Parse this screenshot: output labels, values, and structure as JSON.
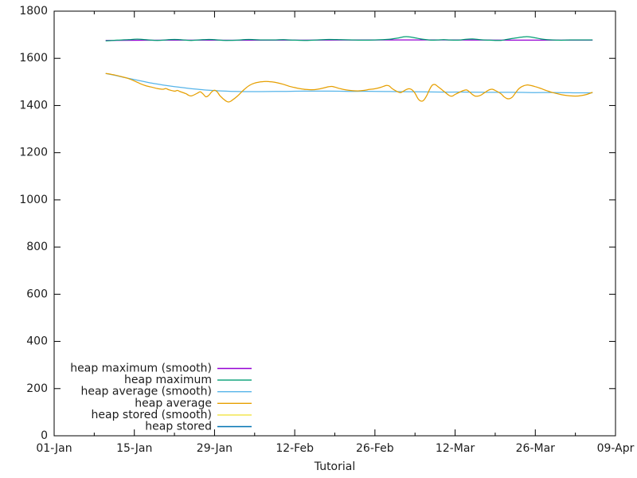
{
  "page": {
    "background": "#ffffff",
    "axis_color": "#000000",
    "text_color": "#1c1c1c"
  },
  "chart_data": {
    "type": "line",
    "title": "",
    "xlabel": "Tutorial",
    "ylabel": "",
    "grid": false,
    "legend_position": "bottom-left-inside",
    "x_axis": {
      "unit": "date",
      "range_days": [
        0,
        98
      ],
      "major_ticks": [
        {
          "day": 0,
          "label": "01-Jan"
        },
        {
          "day": 14,
          "label": "15-Jan"
        },
        {
          "day": 28,
          "label": "29-Jan"
        },
        {
          "day": 42,
          "label": "12-Feb"
        },
        {
          "day": 56,
          "label": "26-Feb"
        },
        {
          "day": 70,
          "label": "12-Mar"
        },
        {
          "day": 84,
          "label": "26-Mar"
        },
        {
          "day": 98,
          "label": "09-Apr"
        }
      ],
      "minor_tick_days": [
        7,
        21,
        35,
        49,
        63,
        77,
        91
      ]
    },
    "y_axis": {
      "range": [
        0,
        1800
      ],
      "tick_values": [
        0,
        200,
        400,
        600,
        800,
        1000,
        1200,
        1400,
        1600,
        1800
      ]
    },
    "series": [
      {
        "key": "heap_maximum_smooth",
        "label": "heap maximum (smooth)",
        "color": "#9400d3",
        "visible": true,
        "points": [
          [
            9,
            1676
          ],
          [
            20,
            1677
          ],
          [
            40,
            1677
          ],
          [
            60,
            1678
          ],
          [
            80,
            1677
          ],
          [
            94,
            1677
          ]
        ]
      },
      {
        "key": "heap_maximum",
        "label": "heap maximum",
        "color": "#009e73",
        "visible": true,
        "points": [
          [
            9,
            1674
          ],
          [
            11,
            1677
          ],
          [
            13,
            1679
          ],
          [
            14,
            1681
          ],
          [
            15,
            1681
          ],
          [
            16,
            1679
          ],
          [
            17,
            1677
          ],
          [
            18,
            1676
          ],
          [
            19,
            1677
          ],
          [
            20,
            1679
          ],
          [
            21,
            1680
          ],
          [
            22,
            1679
          ],
          [
            23,
            1677
          ],
          [
            24,
            1676
          ],
          [
            26,
            1679
          ],
          [
            27,
            1680
          ],
          [
            28,
            1679
          ],
          [
            29,
            1677
          ],
          [
            30,
            1676
          ],
          [
            32,
            1677
          ],
          [
            33,
            1679
          ],
          [
            34,
            1680
          ],
          [
            35,
            1679
          ],
          [
            36,
            1678
          ],
          [
            38,
            1678
          ],
          [
            40,
            1679
          ],
          [
            42,
            1677
          ],
          [
            44,
            1676
          ],
          [
            46,
            1678
          ],
          [
            48,
            1680
          ],
          [
            50,
            1679
          ],
          [
            52,
            1678
          ],
          [
            54,
            1677
          ],
          [
            56,
            1678
          ],
          [
            58,
            1680
          ],
          [
            59,
            1682
          ],
          [
            60,
            1686
          ],
          [
            61,
            1691
          ],
          [
            61.5,
            1692
          ],
          [
            62,
            1691
          ],
          [
            63,
            1687
          ],
          [
            64,
            1682
          ],
          [
            65,
            1679
          ],
          [
            66,
            1677
          ],
          [
            67,
            1678
          ],
          [
            68,
            1679
          ],
          [
            69,
            1678
          ],
          [
            70,
            1677
          ],
          [
            71,
            1678
          ],
          [
            72,
            1681
          ],
          [
            73,
            1682
          ],
          [
            74,
            1680
          ],
          [
            75,
            1678
          ],
          [
            76,
            1677
          ],
          [
            77,
            1676
          ],
          [
            78,
            1676
          ],
          [
            79,
            1680
          ],
          [
            80,
            1684
          ],
          [
            81,
            1688
          ],
          [
            82,
            1691
          ],
          [
            82.5,
            1692
          ],
          [
            83,
            1691
          ],
          [
            84,
            1687
          ],
          [
            85,
            1682
          ],
          [
            86,
            1679
          ],
          [
            87,
            1678
          ],
          [
            88,
            1677
          ],
          [
            89,
            1677
          ],
          [
            90,
            1678
          ],
          [
            92,
            1678
          ],
          [
            94,
            1678
          ]
        ]
      },
      {
        "key": "heap_average_smooth",
        "label": "heap average (smooth)",
        "color": "#56b4e9",
        "visible": true,
        "points": [
          [
            9,
            1536
          ],
          [
            11,
            1526
          ],
          [
            13,
            1515
          ],
          [
            15,
            1505
          ],
          [
            17,
            1495
          ],
          [
            19,
            1487
          ],
          [
            21,
            1480
          ],
          [
            23,
            1474
          ],
          [
            25,
            1469
          ],
          [
            27,
            1465
          ],
          [
            29,
            1462
          ],
          [
            31,
            1460
          ],
          [
            33,
            1459
          ],
          [
            36,
            1459
          ],
          [
            40,
            1460
          ],
          [
            44,
            1461
          ],
          [
            48,
            1461
          ],
          [
            52,
            1460
          ],
          [
            56,
            1460
          ],
          [
            60,
            1459
          ],
          [
            64,
            1458
          ],
          [
            68,
            1457
          ],
          [
            72,
            1457
          ],
          [
            76,
            1456
          ],
          [
            80,
            1456
          ],
          [
            84,
            1455
          ],
          [
            88,
            1455
          ],
          [
            91,
            1454
          ],
          [
            94,
            1454
          ]
        ]
      },
      {
        "key": "heap_average",
        "label": "heap average",
        "color": "#e69f00",
        "visible": true,
        "points": [
          [
            9,
            1536
          ],
          [
            10,
            1532
          ],
          [
            11,
            1527
          ],
          [
            12,
            1521
          ],
          [
            13,
            1514
          ],
          [
            14,
            1504
          ],
          [
            15,
            1493
          ],
          [
            16,
            1484
          ],
          [
            17,
            1478
          ],
          [
            18,
            1472
          ],
          [
            19,
            1469
          ],
          [
            19.5,
            1472
          ],
          [
            20,
            1467
          ],
          [
            21,
            1461
          ],
          [
            21.5,
            1464
          ],
          [
            22,
            1459
          ],
          [
            23,
            1450
          ],
          [
            23.5,
            1443
          ],
          [
            24,
            1441
          ],
          [
            25,
            1452
          ],
          [
            25.5,
            1458
          ],
          [
            26,
            1449
          ],
          [
            26.5,
            1437
          ],
          [
            27,
            1443
          ],
          [
            27.5,
            1458
          ],
          [
            28,
            1465
          ],
          [
            28.5,
            1457
          ],
          [
            29,
            1440
          ],
          [
            30,
            1419
          ],
          [
            30.5,
            1415
          ],
          [
            31,
            1421
          ],
          [
            32,
            1440
          ],
          [
            33,
            1464
          ],
          [
            34,
            1484
          ],
          [
            35,
            1495
          ],
          [
            36,
            1500
          ],
          [
            37,
            1502
          ],
          [
            38,
            1500
          ],
          [
            39,
            1496
          ],
          [
            40,
            1490
          ],
          [
            41,
            1482
          ],
          [
            42,
            1476
          ],
          [
            43,
            1471
          ],
          [
            44,
            1468
          ],
          [
            45,
            1467
          ],
          [
            46,
            1469
          ],
          [
            47,
            1474
          ],
          [
            48,
            1480
          ],
          [
            48.5,
            1481
          ],
          [
            49,
            1478
          ],
          [
            50,
            1471
          ],
          [
            51,
            1466
          ],
          [
            52,
            1463
          ],
          [
            53,
            1462
          ],
          [
            54,
            1464
          ],
          [
            55,
            1468
          ],
          [
            56,
            1471
          ],
          [
            57,
            1477
          ],
          [
            58,
            1485
          ],
          [
            58.5,
            1483
          ],
          [
            59,
            1472
          ],
          [
            60,
            1458
          ],
          [
            60.5,
            1455
          ],
          [
            61,
            1461
          ],
          [
            61.5,
            1468
          ],
          [
            62,
            1471
          ],
          [
            62.5,
            1466
          ],
          [
            63,
            1452
          ],
          [
            63.5,
            1430
          ],
          [
            64,
            1419
          ],
          [
            64.5,
            1422
          ],
          [
            65,
            1440
          ],
          [
            65.5,
            1466
          ],
          [
            66,
            1486
          ],
          [
            66.5,
            1489
          ],
          [
            67,
            1480
          ],
          [
            68,
            1461
          ],
          [
            69,
            1442
          ],
          [
            69.5,
            1440
          ],
          [
            70,
            1447
          ],
          [
            71,
            1459
          ],
          [
            71.5,
            1464
          ],
          [
            72,
            1466
          ],
          [
            72.5,
            1458
          ],
          [
            73,
            1447
          ],
          [
            73.5,
            1440
          ],
          [
            74,
            1440
          ],
          [
            74.5,
            1444
          ],
          [
            75,
            1452
          ],
          [
            75.5,
            1460
          ],
          [
            76,
            1467
          ],
          [
            76.5,
            1469
          ],
          [
            77,
            1464
          ],
          [
            78,
            1450
          ],
          [
            78.5,
            1438
          ],
          [
            79,
            1430
          ],
          [
            79.5,
            1429
          ],
          [
            80,
            1436
          ],
          [
            80.5,
            1452
          ],
          [
            81,
            1468
          ],
          [
            81.5,
            1478
          ],
          [
            82,
            1484
          ],
          [
            82.5,
            1487
          ],
          [
            83,
            1486
          ],
          [
            84,
            1480
          ],
          [
            85,
            1472
          ],
          [
            86,
            1463
          ],
          [
            87,
            1455
          ],
          [
            88,
            1449
          ],
          [
            89,
            1444
          ],
          [
            90,
            1441
          ],
          [
            91,
            1440
          ],
          [
            92,
            1442
          ],
          [
            93,
            1447
          ],
          [
            94,
            1456
          ]
        ]
      },
      {
        "key": "heap_stored_smooth",
        "label": "heap stored (smooth)",
        "color": "#f0e442",
        "visible": false,
        "points": []
      },
      {
        "key": "heap_stored",
        "label": "heap stored",
        "color": "#0072b2",
        "visible": false,
        "points": []
      }
    ]
  }
}
